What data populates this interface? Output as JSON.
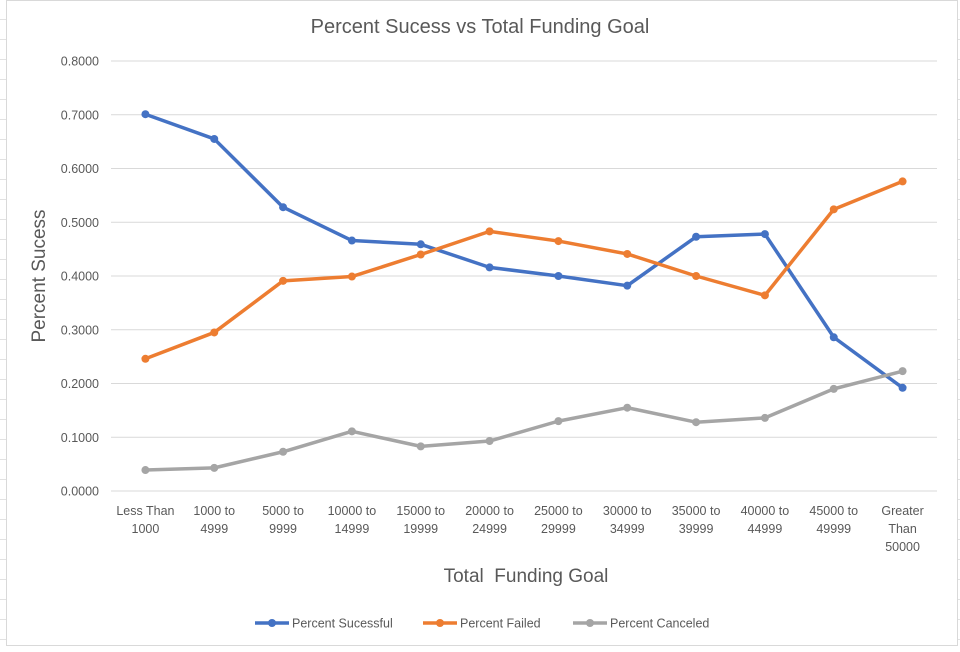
{
  "chart_data": {
    "type": "line",
    "title": "Percent Sucess vs Total Funding Goal",
    "xlabel": "Total  Funding Goal",
    "ylabel": "Percent Sucess",
    "ylim": [
      0,
      0.8
    ],
    "yticks": [
      "0.0000",
      "0.1000",
      "0.2000",
      "0.3000",
      "0.4000",
      "0.5000",
      "0.6000",
      "0.7000",
      "0.8000"
    ],
    "grid": true,
    "legend_position": "bottom",
    "categories": [
      [
        "Less Than",
        "1000"
      ],
      [
        "1000 to",
        "4999"
      ],
      [
        "5000 to",
        "9999"
      ],
      [
        "10000 to",
        "14999"
      ],
      [
        "15000 to",
        "19999"
      ],
      [
        "20000 to",
        "24999"
      ],
      [
        "25000 to",
        "29999"
      ],
      [
        "30000 to",
        "34999"
      ],
      [
        "35000 to",
        "39999"
      ],
      [
        "40000 to",
        "44999"
      ],
      [
        "45000 to",
        "49999"
      ],
      [
        "Greater",
        "Than",
        "50000"
      ]
    ],
    "series": [
      {
        "name": "Percent Sucessful",
        "color": "#4472c4",
        "values": [
          0.701,
          0.655,
          0.528,
          0.466,
          0.459,
          0.416,
          0.4,
          0.382,
          0.473,
          0.478,
          0.286,
          0.192
        ]
      },
      {
        "name": "Percent Failed",
        "color": "#ed7d31",
        "values": [
          0.246,
          0.295,
          0.391,
          0.399,
          0.44,
          0.483,
          0.465,
          0.441,
          0.4,
          0.364,
          0.524,
          0.576
        ]
      },
      {
        "name": "Percent Canceled",
        "color": "#a5a5a5",
        "values": [
          0.039,
          0.043,
          0.073,
          0.111,
          0.083,
          0.093,
          0.13,
          0.155,
          0.128,
          0.136,
          0.19,
          0.223
        ]
      }
    ]
  }
}
